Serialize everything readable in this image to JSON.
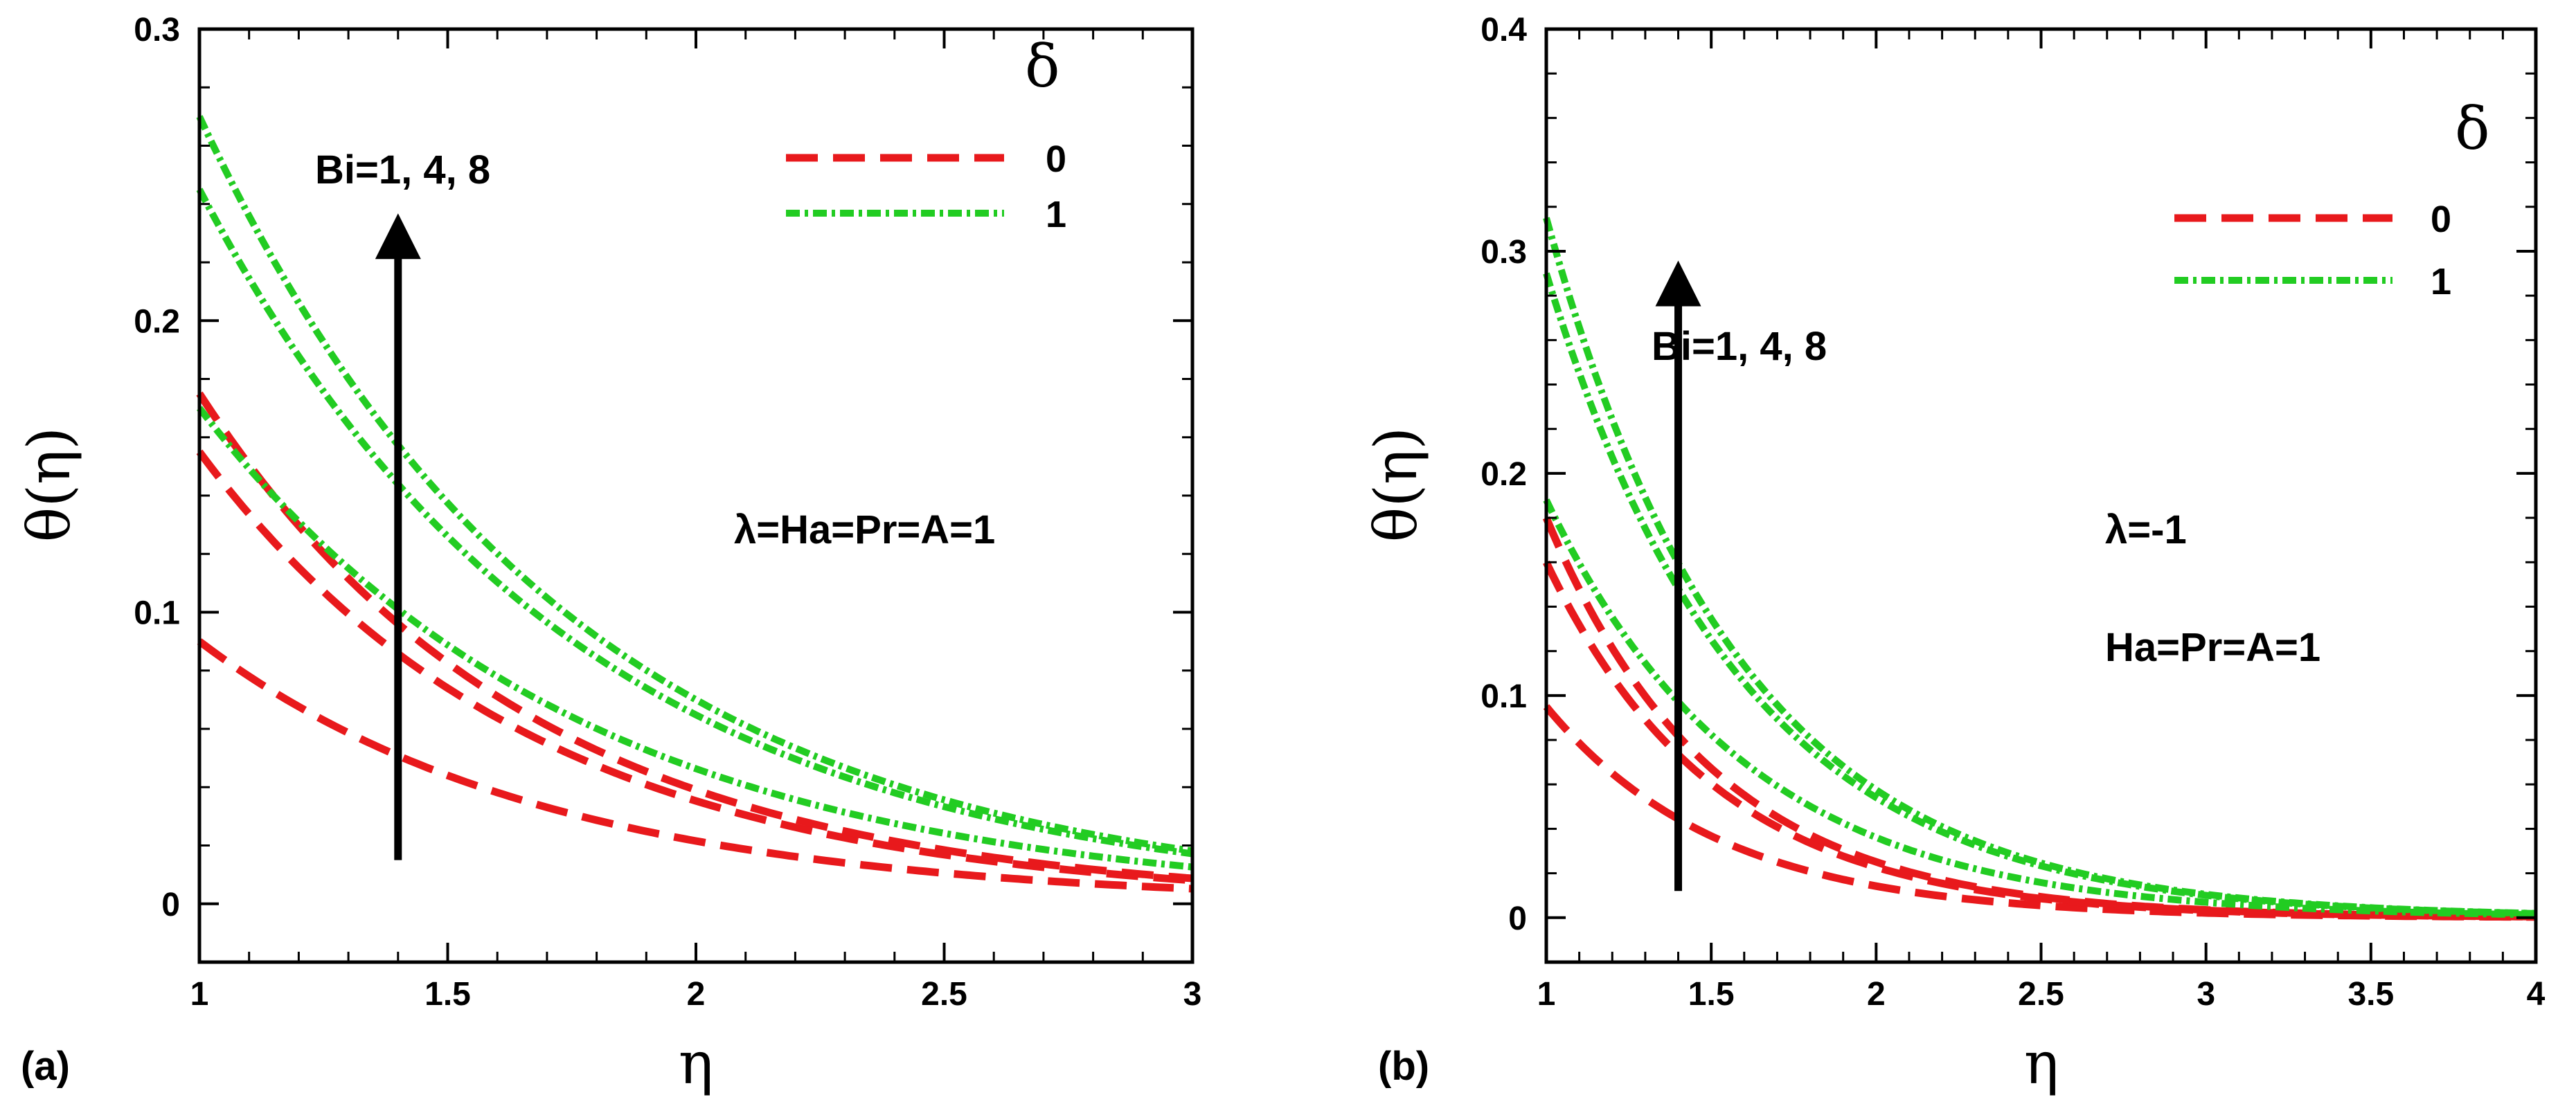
{
  "chart_data": [
    {
      "panel_label": "(a)",
      "type": "line",
      "xlabel": "η",
      "ylabel": "θ(η)",
      "xlim": [
        1,
        3
      ],
      "ylim": [
        -0.02,
        0.3
      ],
      "xticks": [
        1,
        1.5,
        2,
        2.5,
        3
      ],
      "xtick_labels": [
        "1",
        "1.5",
        "2",
        "2.5",
        "3"
      ],
      "yticks": [
        0,
        0.1,
        0.2,
        0.3
      ],
      "ytick_labels": [
        "0",
        "0.1",
        "0.2",
        "0.3"
      ],
      "legend": {
        "title": "δ",
        "entries": [
          "0",
          "1"
        ],
        "colors": [
          "#e8191c",
          "#22cc22"
        ]
      },
      "annotations": [
        "Bi=1, 4, 8",
        "λ=Ha=Pr=A=1"
      ],
      "arrow": {
        "x": 1.4,
        "from_y": 0.015,
        "to_y": 0.24
      },
      "series": [
        {
          "name": "δ=0, Bi=1",
          "delta": "0",
          "theta0": 0.09,
          "k": 1.43,
          "x_end": 3
        },
        {
          "name": "δ=0, Bi=4",
          "delta": "0",
          "theta0": 0.155,
          "k": 1.48,
          "x_end": 3
        },
        {
          "name": "δ=0, Bi=8",
          "delta": "0",
          "theta0": 0.175,
          "k": 1.5,
          "x_end": 3
        },
        {
          "name": "δ=1, Bi=1",
          "delta": "1",
          "theta0": 0.17,
          "k": 1.3,
          "x_end": 3
        },
        {
          "name": "δ=1, Bi=4",
          "delta": "1",
          "theta0": 0.245,
          "k": 1.33,
          "x_end": 3
        },
        {
          "name": "δ=1, Bi=8",
          "delta": "1",
          "theta0": 0.27,
          "k": 1.35,
          "x_end": 3
        }
      ]
    },
    {
      "panel_label": "(b)",
      "type": "line",
      "xlabel": "η",
      "ylabel": "θ(η)",
      "xlim": [
        1,
        4
      ],
      "ylim": [
        -0.02,
        0.4
      ],
      "xticks": [
        1,
        1.5,
        2,
        2.5,
        3,
        3.5,
        4
      ],
      "xtick_labels": [
        "1",
        "1.5",
        "2",
        "2.5",
        "3",
        "3.5",
        "4"
      ],
      "yticks": [
        0,
        0.1,
        0.2,
        0.3,
        0.4
      ],
      "ytick_labels": [
        "0",
        "0.1",
        "0.2",
        "0.3",
        "0.4"
      ],
      "legend": {
        "title": "δ",
        "entries": [
          "0",
          "1"
        ],
        "colors": [
          "#e8191c",
          "#22cc22"
        ]
      },
      "annotations": [
        "Bi=1, 4, 8",
        "λ=-1",
        "Ha=Pr=A=1"
      ],
      "arrow": {
        "x": 1.4,
        "from_y": 0.012,
        "to_y": 0.3
      },
      "series": [
        {
          "name": "δ=0, Bi=1",
          "delta": "0",
          "theta0": 0.095,
          "k": 1.9,
          "x_end": 4
        },
        {
          "name": "δ=0, Bi=4",
          "delta": "0",
          "theta0": 0.16,
          "k": 1.95,
          "x_end": 4
        },
        {
          "name": "δ=0, Bi=8",
          "delta": "0",
          "theta0": 0.18,
          "k": 1.97,
          "x_end": 4
        },
        {
          "name": "δ=1, Bi=1",
          "delta": "1",
          "theta0": 0.188,
          "k": 1.65,
          "x_end": 4
        },
        {
          "name": "δ=1, Bi=4",
          "delta": "1",
          "theta0": 0.29,
          "k": 1.68,
          "x_end": 4
        },
        {
          "name": "δ=1, Bi=8",
          "delta": "1",
          "theta0": 0.315,
          "k": 1.7,
          "x_end": 4
        }
      ]
    }
  ]
}
